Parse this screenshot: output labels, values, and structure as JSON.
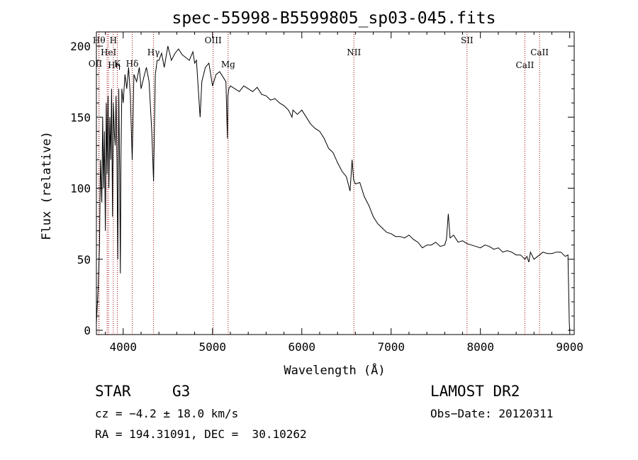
{
  "chart_data": {
    "type": "line",
    "title": "spec-55998-B5599805_sp03-045.fits",
    "xlabel": "Wavelength (Å)",
    "ylabel": "Flux (relative)",
    "xlim": [
      3700,
      9050
    ],
    "ylim": [
      -3,
      210
    ],
    "xticks": [
      4000,
      5000,
      6000,
      7000,
      8000,
      9000
    ],
    "yticks": [
      0,
      50,
      100,
      150,
      200
    ],
    "line_color": "#000000",
    "marker_color": "#a00000",
    "series": [
      {
        "x": [
          3700,
          3720,
          3735,
          3745,
          3760,
          3770,
          3780,
          3790,
          3800,
          3810,
          3820,
          3830,
          3840,
          3850,
          3860,
          3870,
          3880,
          3890,
          3900,
          3910,
          3920,
          3930,
          3940,
          3950,
          3960,
          3968,
          3975,
          3985,
          4000,
          4020,
          4040,
          4060,
          4080,
          4101,
          4120,
          4150,
          4180,
          4200,
          4230,
          4260,
          4290,
          4320,
          4340,
          4360,
          4380,
          4400,
          4430,
          4460,
          4500,
          4540,
          4580,
          4620,
          4660,
          4700,
          4740,
          4780,
          4800,
          4820,
          4861,
          4880,
          4920,
          4960,
          5000,
          5040,
          5080,
          5120,
          5150,
          5167,
          5172,
          5183,
          5200,
          5250,
          5300,
          5350,
          5400,
          5450,
          5500,
          5550,
          5600,
          5650,
          5700,
          5750,
          5800,
          5850,
          5890,
          5900,
          5950,
          6000,
          6050,
          6100,
          6150,
          6200,
          6250,
          6300,
          6350,
          6400,
          6450,
          6500,
          6540,
          6563,
          6580,
          6600,
          6650,
          6700,
          6750,
          6800,
          6850,
          6900,
          6950,
          7000,
          7050,
          7100,
          7150,
          7200,
          7250,
          7300,
          7350,
          7400,
          7450,
          7500,
          7550,
          7600,
          7620,
          7640,
          7660,
          7700,
          7750,
          7800,
          7850,
          7900,
          7950,
          8000,
          8050,
          8100,
          8150,
          8200,
          8250,
          8300,
          8350,
          8400,
          8450,
          8498,
          8520,
          8542,
          8560,
          8600,
          8662,
          8700,
          8750,
          8800,
          8850,
          8900,
          8950,
          8980,
          8995,
          9000
        ],
        "y": [
          5,
          30,
          60,
          120,
          90,
          150,
          100,
          140,
          70,
          160,
          110,
          165,
          100,
          150,
          120,
          170,
          80,
          160,
          140,
          130,
          165,
          120,
          50,
          170,
          110,
          40,
          120,
          170,
          160,
          180,
          170,
          185,
          165,
          120,
          180,
          175,
          185,
          170,
          178,
          185,
          175,
          140,
          105,
          180,
          190,
          190,
          195,
          185,
          200,
          190,
          195,
          198,
          194,
          192,
          190,
          196,
          188,
          190,
          150,
          175,
          185,
          188,
          172,
          180,
          182,
          178,
          175,
          135,
          165,
          170,
          172,
          170,
          168,
          172,
          170,
          168,
          171,
          166,
          165,
          162,
          163,
          160,
          158,
          155,
          150,
          155,
          152,
          155,
          150,
          145,
          142,
          140,
          135,
          128,
          125,
          118,
          112,
          108,
          98,
          120,
          106,
          103,
          104,
          94,
          88,
          80,
          75,
          72,
          69,
          68,
          66,
          66,
          65,
          67,
          64,
          62,
          58,
          60,
          60,
          62,
          59,
          60,
          64,
          82,
          65,
          67,
          62,
          63,
          61,
          60,
          59,
          58,
          60,
          59,
          57,
          58,
          55,
          56,
          55,
          53,
          53,
          50,
          52,
          48,
          55,
          50,
          53,
          55,
          54,
          54,
          55,
          55,
          52,
          53,
          5,
          0
        ]
      }
    ],
    "lines": [
      {
        "label": "Hθ",
        "x": 3730
      },
      {
        "label": "OII",
        "x": 3727
      },
      {
        "label": "HeI",
        "x": 3820
      },
      {
        "label": "Hη",
        "x": 3835
      },
      {
        "label": "H",
        "x": 3889
      },
      {
        "label": "K",
        "x": 3934
      },
      {
        "label": "Hδ",
        "x": 4101
      },
      {
        "label": "Hγ",
        "x": 4340
      },
      {
        "label": "OIII",
        "x": 5007
      },
      {
        "label": "Mg",
        "x": 5175
      },
      {
        "label": "NII",
        "x": 6583
      },
      {
        "label": "SII",
        "x": 7850
      },
      {
        "label": "CaII",
        "x": 8498
      },
      {
        "label": "CaII",
        "x": 8662
      }
    ]
  },
  "info": {
    "object_class": "STAR",
    "subclass": "G3",
    "survey": "LAMOST DR2",
    "redshift": "cz = −4.2 ± 18.0 km/s",
    "obs_date": "Obs−Date: 20120311",
    "coords": "RA = 194.31091, DEC =  30.10262"
  }
}
